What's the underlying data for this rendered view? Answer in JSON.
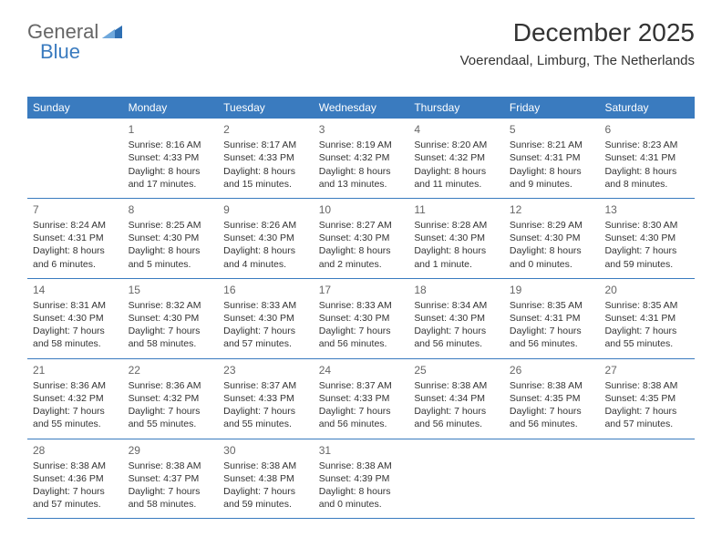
{
  "logo": {
    "part1": "General",
    "part2": "Blue"
  },
  "header": {
    "month_title": "December 2025",
    "location": "Voerendaal, Limburg, The Netherlands"
  },
  "colors": {
    "header_bg": "#3a7bbf",
    "header_text": "#ffffff",
    "border": "#3a7bbf",
    "text": "#333333",
    "daynum": "#666666"
  },
  "weekdays": [
    "Sunday",
    "Monday",
    "Tuesday",
    "Wednesday",
    "Thursday",
    "Friday",
    "Saturday"
  ],
  "weeks": [
    [
      {
        "n": "",
        "sr": "",
        "ss": "",
        "dl": ""
      },
      {
        "n": "1",
        "sr": "Sunrise: 8:16 AM",
        "ss": "Sunset: 4:33 PM",
        "dl": "Daylight: 8 hours and 17 minutes."
      },
      {
        "n": "2",
        "sr": "Sunrise: 8:17 AM",
        "ss": "Sunset: 4:33 PM",
        "dl": "Daylight: 8 hours and 15 minutes."
      },
      {
        "n": "3",
        "sr": "Sunrise: 8:19 AM",
        "ss": "Sunset: 4:32 PM",
        "dl": "Daylight: 8 hours and 13 minutes."
      },
      {
        "n": "4",
        "sr": "Sunrise: 8:20 AM",
        "ss": "Sunset: 4:32 PM",
        "dl": "Daylight: 8 hours and 11 minutes."
      },
      {
        "n": "5",
        "sr": "Sunrise: 8:21 AM",
        "ss": "Sunset: 4:31 PM",
        "dl": "Daylight: 8 hours and 9 minutes."
      },
      {
        "n": "6",
        "sr": "Sunrise: 8:23 AM",
        "ss": "Sunset: 4:31 PM",
        "dl": "Daylight: 8 hours and 8 minutes."
      }
    ],
    [
      {
        "n": "7",
        "sr": "Sunrise: 8:24 AM",
        "ss": "Sunset: 4:31 PM",
        "dl": "Daylight: 8 hours and 6 minutes."
      },
      {
        "n": "8",
        "sr": "Sunrise: 8:25 AM",
        "ss": "Sunset: 4:30 PM",
        "dl": "Daylight: 8 hours and 5 minutes."
      },
      {
        "n": "9",
        "sr": "Sunrise: 8:26 AM",
        "ss": "Sunset: 4:30 PM",
        "dl": "Daylight: 8 hours and 4 minutes."
      },
      {
        "n": "10",
        "sr": "Sunrise: 8:27 AM",
        "ss": "Sunset: 4:30 PM",
        "dl": "Daylight: 8 hours and 2 minutes."
      },
      {
        "n": "11",
        "sr": "Sunrise: 8:28 AM",
        "ss": "Sunset: 4:30 PM",
        "dl": "Daylight: 8 hours and 1 minute."
      },
      {
        "n": "12",
        "sr": "Sunrise: 8:29 AM",
        "ss": "Sunset: 4:30 PM",
        "dl": "Daylight: 8 hours and 0 minutes."
      },
      {
        "n": "13",
        "sr": "Sunrise: 8:30 AM",
        "ss": "Sunset: 4:30 PM",
        "dl": "Daylight: 7 hours and 59 minutes."
      }
    ],
    [
      {
        "n": "14",
        "sr": "Sunrise: 8:31 AM",
        "ss": "Sunset: 4:30 PM",
        "dl": "Daylight: 7 hours and 58 minutes."
      },
      {
        "n": "15",
        "sr": "Sunrise: 8:32 AM",
        "ss": "Sunset: 4:30 PM",
        "dl": "Daylight: 7 hours and 58 minutes."
      },
      {
        "n": "16",
        "sr": "Sunrise: 8:33 AM",
        "ss": "Sunset: 4:30 PM",
        "dl": "Daylight: 7 hours and 57 minutes."
      },
      {
        "n": "17",
        "sr": "Sunrise: 8:33 AM",
        "ss": "Sunset: 4:30 PM",
        "dl": "Daylight: 7 hours and 56 minutes."
      },
      {
        "n": "18",
        "sr": "Sunrise: 8:34 AM",
        "ss": "Sunset: 4:30 PM",
        "dl": "Daylight: 7 hours and 56 minutes."
      },
      {
        "n": "19",
        "sr": "Sunrise: 8:35 AM",
        "ss": "Sunset: 4:31 PM",
        "dl": "Daylight: 7 hours and 56 minutes."
      },
      {
        "n": "20",
        "sr": "Sunrise: 8:35 AM",
        "ss": "Sunset: 4:31 PM",
        "dl": "Daylight: 7 hours and 55 minutes."
      }
    ],
    [
      {
        "n": "21",
        "sr": "Sunrise: 8:36 AM",
        "ss": "Sunset: 4:32 PM",
        "dl": "Daylight: 7 hours and 55 minutes."
      },
      {
        "n": "22",
        "sr": "Sunrise: 8:36 AM",
        "ss": "Sunset: 4:32 PM",
        "dl": "Daylight: 7 hours and 55 minutes."
      },
      {
        "n": "23",
        "sr": "Sunrise: 8:37 AM",
        "ss": "Sunset: 4:33 PM",
        "dl": "Daylight: 7 hours and 55 minutes."
      },
      {
        "n": "24",
        "sr": "Sunrise: 8:37 AM",
        "ss": "Sunset: 4:33 PM",
        "dl": "Daylight: 7 hours and 56 minutes."
      },
      {
        "n": "25",
        "sr": "Sunrise: 8:38 AM",
        "ss": "Sunset: 4:34 PM",
        "dl": "Daylight: 7 hours and 56 minutes."
      },
      {
        "n": "26",
        "sr": "Sunrise: 8:38 AM",
        "ss": "Sunset: 4:35 PM",
        "dl": "Daylight: 7 hours and 56 minutes."
      },
      {
        "n": "27",
        "sr": "Sunrise: 8:38 AM",
        "ss": "Sunset: 4:35 PM",
        "dl": "Daylight: 7 hours and 57 minutes."
      }
    ],
    [
      {
        "n": "28",
        "sr": "Sunrise: 8:38 AM",
        "ss": "Sunset: 4:36 PM",
        "dl": "Daylight: 7 hours and 57 minutes."
      },
      {
        "n": "29",
        "sr": "Sunrise: 8:38 AM",
        "ss": "Sunset: 4:37 PM",
        "dl": "Daylight: 7 hours and 58 minutes."
      },
      {
        "n": "30",
        "sr": "Sunrise: 8:38 AM",
        "ss": "Sunset: 4:38 PM",
        "dl": "Daylight: 7 hours and 59 minutes."
      },
      {
        "n": "31",
        "sr": "Sunrise: 8:38 AM",
        "ss": "Sunset: 4:39 PM",
        "dl": "Daylight: 8 hours and 0 minutes."
      },
      {
        "n": "",
        "sr": "",
        "ss": "",
        "dl": ""
      },
      {
        "n": "",
        "sr": "",
        "ss": "",
        "dl": ""
      },
      {
        "n": "",
        "sr": "",
        "ss": "",
        "dl": ""
      }
    ]
  ]
}
